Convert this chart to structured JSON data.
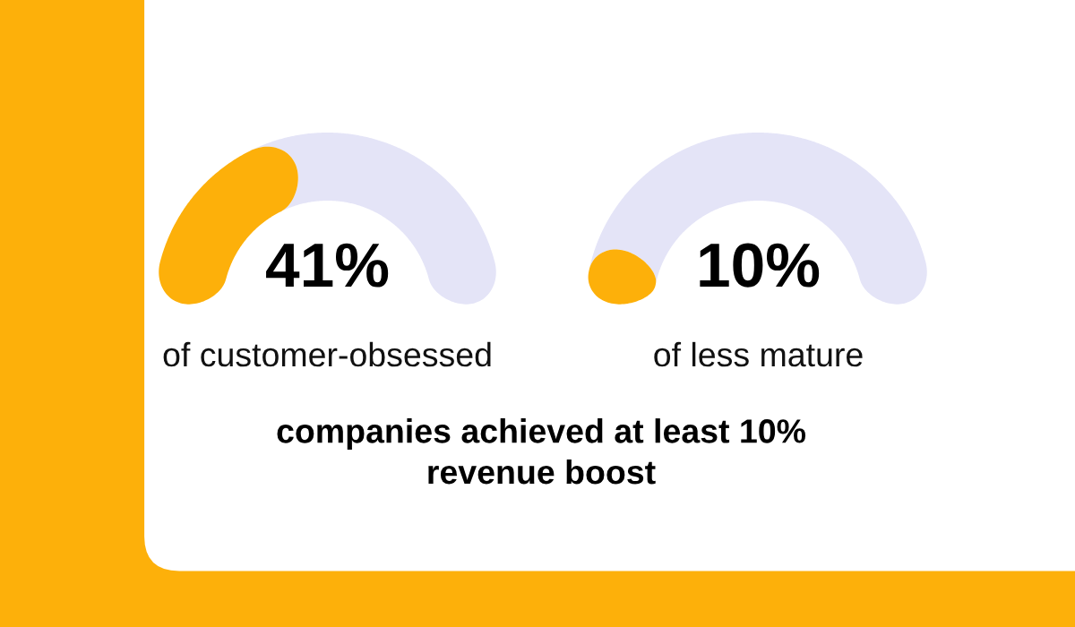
{
  "chart_data": [
    {
      "type": "donut",
      "title": "41%",
      "subtitle": "of customer-obsessed",
      "categories": [
        null,
        null
      ],
      "values": [
        41,
        59
      ],
      "colors": [
        "#fdb00a",
        "#e4e4f7"
      ]
    },
    {
      "type": "donut",
      "title": "10%",
      "subtitle": "of less mature",
      "categories": [
        null,
        null
      ],
      "values": [
        10,
        90
      ],
      "colors": [
        "#fdb00a",
        "#e4e4f7"
      ]
    },
    {
      "type": "other",
      "annotations": [
        "companies achieved at least 10%\nrevenue boost"
      ]
    }
  ]
}
